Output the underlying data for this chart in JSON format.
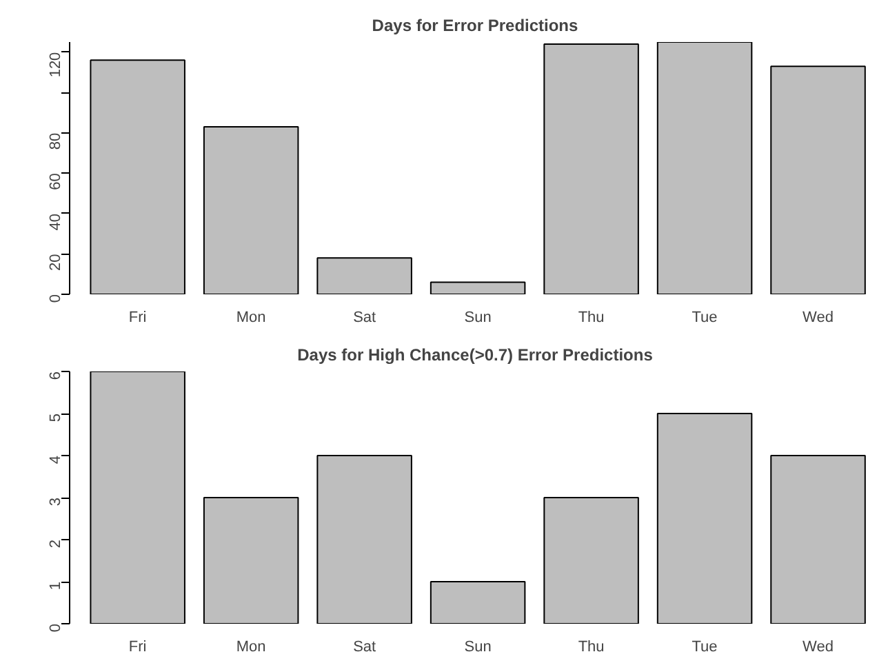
{
  "chart_data": [
    {
      "type": "bar",
      "title": "Days for Error Predictions",
      "categories": [
        "Fri",
        "Mon",
        "Sat",
        "Sun",
        "Thu",
        "Tue",
        "Wed"
      ],
      "values": [
        116,
        83,
        18,
        6,
        124,
        125,
        113
      ],
      "color": "#bebebe",
      "ylim": [
        0,
        125
      ],
      "yticks": [
        0,
        20,
        40,
        60,
        80,
        {
          "value": 100,
          "label": null
        },
        120
      ],
      "grid": false,
      "legend": false
    },
    {
      "type": "bar",
      "title": "Days for High Chance(>0.7) Error Predictions",
      "categories": [
        "Fri",
        "Mon",
        "Sat",
        "Sun",
        "Thu",
        "Tue",
        "Wed"
      ],
      "values": [
        6,
        3,
        4,
        1,
        3,
        5,
        4
      ],
      "color": "#bebebe",
      "ylim": [
        0,
        6
      ],
      "yticks": [
        0,
        1,
        2,
        3,
        4,
        5,
        6
      ],
      "grid": false,
      "legend": false
    }
  ]
}
